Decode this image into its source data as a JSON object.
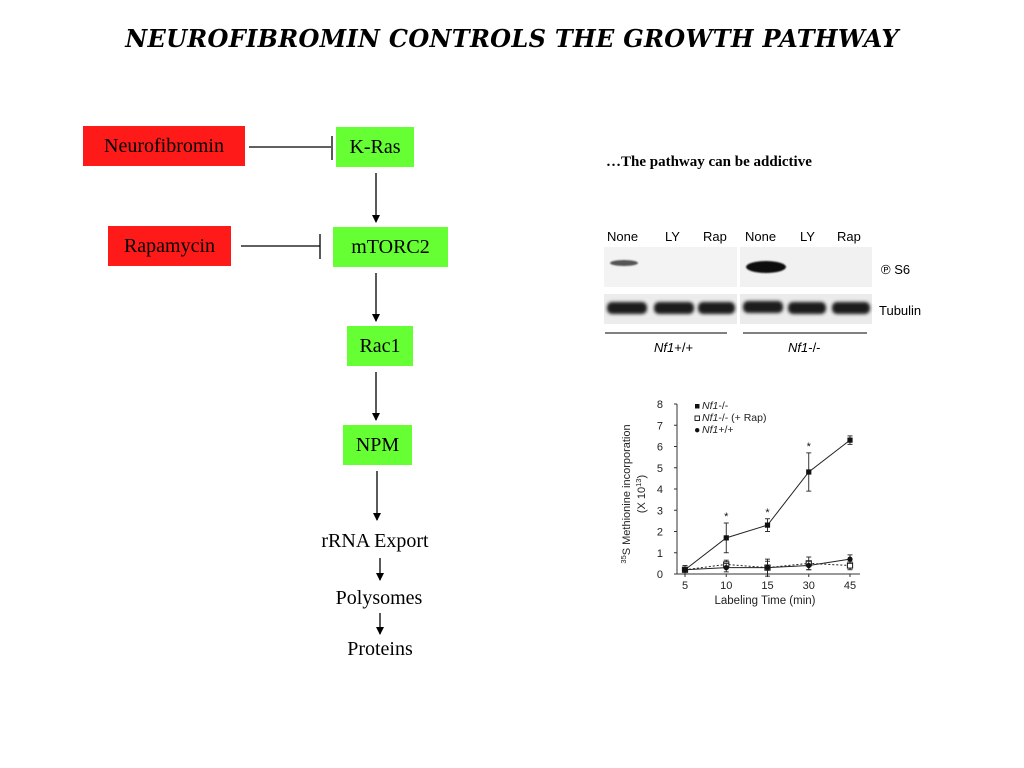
{
  "title": "NEUROFIBROMIN CONTROLS THE GROWTH PATHWAY",
  "pathway": {
    "inhibitors": [
      {
        "label": "Neurofibromin",
        "color": "#ff1a1a"
      },
      {
        "label": "Rapamycin",
        "color": "#ff1a1a"
      }
    ],
    "nodes": [
      {
        "label": "K-Ras",
        "color": "#66ff33"
      },
      {
        "label": "mTORC2",
        "color": "#66ff33"
      },
      {
        "label": "Rac1",
        "color": "#66ff33"
      },
      {
        "label": "NPM",
        "color": "#66ff33"
      }
    ],
    "outputs": [
      "rRNA Export",
      "Polysomes",
      "Proteins"
    ]
  },
  "subtitle": "…The pathway can be addictive",
  "blot": {
    "lanes": [
      "None",
      "LY",
      "Rap",
      "None",
      "LY",
      "Rap"
    ],
    "rows": [
      {
        "label": "S6",
        "symbol": "℗"
      },
      {
        "label": "Tubulin"
      }
    ],
    "groups": [
      {
        "gene": "Nf1",
        "genotype": "+/+"
      },
      {
        "gene": "Nf1",
        "genotype": "-/-"
      }
    ]
  },
  "chart_data": {
    "type": "line",
    "ylabel_prefix": "35",
    "ylabel_line1": "S Methionine incorporation",
    "ylabel_line2": "(X 10",
    "ylabel_exp": "13",
    "ylabel_close": ")",
    "xlabel": "Labeling Time (min)",
    "categories": [
      "5",
      "10",
      "15",
      "30",
      "45"
    ],
    "yticks": [
      0,
      1,
      2,
      3,
      4,
      5,
      6,
      7,
      8
    ],
    "ylim": [
      0,
      8
    ],
    "legend_position": "top-left",
    "series": [
      {
        "name": "Nf1-/-",
        "gene": "Nf1",
        "suffix": "-/-",
        "marker": "filled-square",
        "line": "solid",
        "values": [
          0.2,
          1.7,
          2.3,
          4.8,
          6.3
        ],
        "errors": [
          0.2,
          0.7,
          0.3,
          0.9,
          0.2
        ],
        "significant": [
          false,
          true,
          true,
          true,
          false
        ]
      },
      {
        "name": "Nf1-/- (+ Rap)",
        "gene": "Nf1",
        "suffix": "-/-  (+ Rap)",
        "marker": "open-square",
        "line": "dotted",
        "values": [
          0.2,
          0.45,
          0.3,
          0.5,
          0.4
        ],
        "errors": [
          0.1,
          0.2,
          0.3,
          0.3,
          0.2
        ]
      },
      {
        "name": "Nf1+/+",
        "gene": "Nf1",
        "suffix": "+/+",
        "marker": "filled-circle",
        "line": "solid",
        "values": [
          0.2,
          0.3,
          0.3,
          0.4,
          0.7
        ],
        "errors": [
          0.1,
          0.2,
          0.4,
          0.2,
          0.2
        ]
      }
    ],
    "significance_marker": "*"
  }
}
